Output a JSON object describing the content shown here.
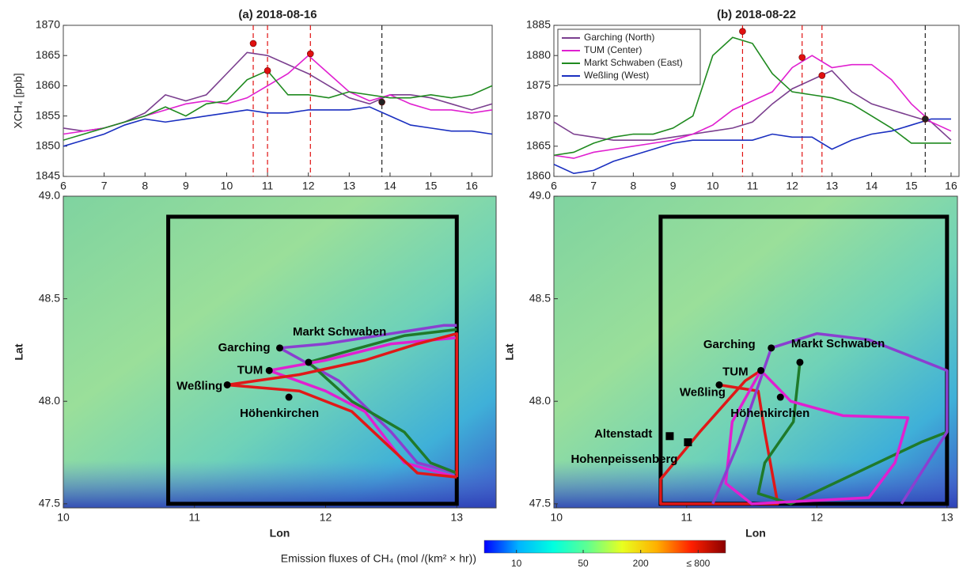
{
  "chart_data": [
    {
      "type": "line",
      "title": "(a) 2018-08-16",
      "y_label": "XCH₄ [ppb]",
      "xlim": [
        6,
        16.5
      ],
      "xticks": [
        6,
        7,
        8,
        9,
        10,
        11,
        12,
        13,
        14,
        15,
        16
      ],
      "ylim": [
        1845,
        1870
      ],
      "yticks": [
        1845,
        1850,
        1855,
        1860,
        1865,
        1870
      ],
      "x": [
        6,
        6.5,
        7,
        7.5,
        8,
        8.5,
        9,
        9.5,
        10,
        10.5,
        11,
        11.5,
        12,
        12.5,
        13,
        13.5,
        14,
        14.5,
        15,
        15.5,
        16,
        16.5
      ],
      "series": [
        {
          "color": "#7b3f8f",
          "values": [
            1853,
            1852.5,
            1853,
            1854,
            1855.5,
            1858.5,
            1857.5,
            1858.5,
            1862,
            1865.5,
            1865,
            1863.5,
            1862,
            1860,
            1858,
            1857,
            1858.5,
            1858.5,
            1858,
            1857,
            1856,
            1857
          ]
        },
        {
          "color": "#e020d0",
          "values": [
            1852,
            1852.5,
            1853,
            1854,
            1855,
            1856,
            1857,
            1857.5,
            1857,
            1858,
            1860,
            1862,
            1865,
            1862,
            1859,
            1857.5,
            1858.5,
            1857,
            1856,
            1856,
            1855.5,
            1856
          ]
        },
        {
          "color": "#1f8a1f",
          "values": [
            1851,
            1852,
            1853,
            1854,
            1855,
            1856.5,
            1855,
            1857,
            1857.5,
            1861,
            1862.5,
            1858.5,
            1858.5,
            1858,
            1859,
            1858.5,
            1858,
            1858,
            1858.5,
            1858,
            1858.5,
            1860
          ]
        },
        {
          "color": "#1a2fc0",
          "values": [
            1850,
            1851,
            1852,
            1853.5,
            1854.5,
            1854,
            1854.5,
            1855,
            1855.5,
            1856,
            1855.5,
            1855.5,
            1856,
            1856,
            1856,
            1856.5,
            1855,
            1853.5,
            1853,
            1852.5,
            1852.5,
            1852
          ]
        }
      ],
      "peaks": {
        "x": [
          10.65,
          11.0,
          12.05,
          13.8
        ],
        "y": [
          1867,
          1862.5,
          1865.3,
          1857.3
        ],
        "colors": [
          "#e01010",
          "#e01010",
          "#e01010",
          "#222222"
        ]
      }
    },
    {
      "type": "line",
      "title": "(b) 2018-08-22",
      "legend": "upper left",
      "xlim": [
        6,
        16.2
      ],
      "xticks": [
        6,
        7,
        8,
        9,
        10,
        11,
        12,
        13,
        14,
        15,
        16
      ],
      "ylim": [
        1860,
        1885
      ],
      "yticks": [
        1860,
        1865,
        1870,
        1875,
        1880,
        1885
      ],
      "x": [
        6,
        6.5,
        7,
        7.5,
        8,
        8.5,
        9,
        9.5,
        10,
        10.5,
        11,
        11.5,
        12,
        12.5,
        13,
        13.5,
        14,
        14.5,
        15,
        15.5,
        16
      ],
      "series": [
        {
          "name": "Garching (North)",
          "color": "#7b3f8f",
          "values": [
            1869,
            1867,
            1866.5,
            1866,
            1866,
            1866,
            1866.5,
            1867,
            1867.5,
            1868,
            1869,
            1872,
            1874.5,
            1876,
            1877.5,
            1874,
            1872,
            1871,
            1870,
            1869,
            1866
          ]
        },
        {
          "name": "TUM (Center)",
          "color": "#e020d0",
          "values": [
            1863.5,
            1863,
            1864,
            1864.5,
            1865,
            1865.5,
            1866,
            1867,
            1868.5,
            1871,
            1872.5,
            1874,
            1878,
            1880,
            1878,
            1878.5,
            1878.5,
            1876,
            1872,
            1869,
            1867.5
          ]
        },
        {
          "name": "Markt Schwaben (East)",
          "color": "#1f8a1f",
          "values": [
            1863.5,
            1864,
            1865.5,
            1866.5,
            1867,
            1867,
            1868,
            1870,
            1880,
            1883,
            1882,
            1877,
            1874,
            1873.5,
            1873,
            1872,
            1870,
            1868,
            1865.5,
            1865.5,
            1865.5
          ]
        },
        {
          "name": "Weßling (West)",
          "color": "#1a2fc0",
          "values": [
            1862,
            1860.5,
            1861,
            1862.5,
            1863.5,
            1864.5,
            1865.5,
            1866,
            1866,
            1866,
            1866,
            1867,
            1866.5,
            1866.5,
            1864.5,
            1866,
            1867,
            1867.5,
            1868.5,
            1869.5,
            1869.5
          ]
        }
      ],
      "peaks": {
        "x": [
          10.75,
          12.25,
          12.75,
          15.35
        ],
        "y": [
          1884,
          1879.7,
          1876.7,
          1869.5
        ],
        "colors": [
          "#e01010",
          "#e01010",
          "#e01010",
          "#222222"
        ]
      }
    },
    {
      "type": "map",
      "x_label": "Lon",
      "y_label": "Lat",
      "xlim": [
        10,
        13.3
      ],
      "xticks": [
        10,
        11,
        12,
        13
      ],
      "ylim": [
        47.48,
        49
      ],
      "yticks": [
        {
          "value": 47.5,
          "label": "47.5"
        },
        {
          "value": 48,
          "label": "48.0"
        },
        {
          "value": 48.5,
          "label": "48.5"
        },
        {
          "value": 49,
          "label": "49.0"
        }
      ],
      "box": {
        "lon": [
          10.8,
          13
        ],
        "lat": [
          47.5,
          48.9
        ]
      },
      "tracks": [
        {
          "color": "#8a3fd0",
          "lon": [
            11.65,
            12.0,
            12.5,
            12.9,
            13
          ],
          "lat": [
            48.26,
            48.28,
            48.33,
            48.37,
            48.37
          ]
        },
        {
          "color": "#8a3fd0",
          "lon": [
            11.65,
            12.1,
            12.5,
            12.7,
            13
          ],
          "lat": [
            48.26,
            48.1,
            47.85,
            47.7,
            47.65
          ]
        },
        {
          "color": "#1f7a2a",
          "lon": [
            11.87,
            12.2,
            12.6,
            13
          ],
          "lat": [
            48.19,
            48.25,
            48.32,
            48.35
          ]
        },
        {
          "color": "#1f7a2a",
          "lon": [
            11.87,
            12.2,
            12.6,
            12.8,
            13
          ],
          "lat": [
            48.19,
            48.0,
            47.85,
            47.7,
            47.65
          ]
        },
        {
          "color": "#e020d0",
          "lon": [
            11.57,
            12.0,
            12.5,
            13
          ],
          "lat": [
            48.15,
            48.2,
            48.28,
            48.31
          ]
        },
        {
          "color": "#e020d0",
          "lon": [
            11.57,
            12.0,
            12.3,
            12.6,
            13
          ],
          "lat": [
            48.15,
            48.05,
            47.95,
            47.7,
            47.63
          ]
        },
        {
          "color": "#e01818",
          "lon": [
            11.25,
            11.8,
            12.3,
            12.7,
            13,
            13
          ],
          "lat": [
            48.08,
            48.13,
            48.2,
            48.28,
            48.33,
            47.63
          ]
        },
        {
          "color": "#e01818",
          "lon": [
            11.25,
            11.8,
            12.2,
            12.45,
            12.7,
            13
          ],
          "lat": [
            48.08,
            48.05,
            47.95,
            47.8,
            47.65,
            47.63
          ]
        }
      ],
      "stations": [
        {
          "name": "Garching",
          "marker": "circle",
          "lon": 11.65,
          "lat": 48.26
        },
        {
          "name": "Markt Schwaben",
          "marker": "circle",
          "lon": 11.87,
          "lat": 48.19
        },
        {
          "name": "TUM",
          "marker": "circle",
          "lon": 11.57,
          "lat": 48.15
        },
        {
          "name": "Weßling",
          "marker": "circle",
          "lon": 11.25,
          "lat": 48.08
        },
        {
          "name": "Höhenkirchen",
          "marker": "circle",
          "lon": 11.72,
          "lat": 48.02
        }
      ]
    },
    {
      "type": "map",
      "x_label": "Lon",
      "y_label": "Lat",
      "xlim": [
        9.98,
        13.08
      ],
      "xticks": [
        10,
        11,
        12,
        13
      ],
      "ylim": [
        47.48,
        49
      ],
      "yticks": [
        {
          "value": 47.5,
          "label": "47.5"
        },
        {
          "value": 48,
          "label": "48.0"
        },
        {
          "value": 48.5,
          "label": "48.5"
        },
        {
          "value": 49,
          "label": "49.0"
        }
      ],
      "box": {
        "lon": [
          10.8,
          13
        ],
        "lat": [
          47.5,
          48.9
        ]
      },
      "tracks": [
        {
          "color": "#e01818",
          "lon": [
            11.25,
            11.55,
            11.6,
            11.7,
            10.8,
            10.8,
            11.1,
            11.45,
            11.57
          ],
          "lat": [
            48.08,
            48.05,
            47.85,
            47.5,
            47.5,
            47.62,
            47.85,
            48.1,
            48.15
          ]
        },
        {
          "color": "#1f7a2a",
          "lon": [
            11.87,
            11.82,
            11.6,
            11.55,
            11.8,
            12.3,
            12.8,
            13
          ],
          "lat": [
            48.19,
            47.9,
            47.7,
            47.55,
            47.5,
            47.65,
            47.8,
            47.85
          ]
        },
        {
          "color": "#e020d0",
          "lon": [
            11.57,
            11.8,
            12.2,
            12.7,
            12.6,
            12.4,
            11.5,
            11.3,
            11.35,
            11.57
          ],
          "lat": [
            48.15,
            48.0,
            47.93,
            47.92,
            47.7,
            47.53,
            47.5,
            47.6,
            47.9,
            48.15
          ]
        },
        {
          "color": "#8a3fd0",
          "lon": [
            11.65,
            12.0,
            12.4,
            12.8,
            13,
            13,
            12.65
          ],
          "lat": [
            48.26,
            48.33,
            48.3,
            48.2,
            48.15,
            47.85,
            47.5
          ]
        },
        {
          "color": "#8a3fd0",
          "lon": [
            11.65,
            11.4,
            11.2
          ],
          "lat": [
            48.26,
            47.8,
            47.5
          ]
        }
      ],
      "stations": [
        {
          "name": "Garching",
          "marker": "circle",
          "lon": 11.65,
          "lat": 48.26
        },
        {
          "name": "Markt Schwaben",
          "marker": "circle",
          "lon": 11.87,
          "lat": 48.19
        },
        {
          "name": "TUM",
          "marker": "circle",
          "lon": 11.57,
          "lat": 48.15
        },
        {
          "name": "Weßling",
          "marker": "circle",
          "lon": 11.25,
          "lat": 48.08
        },
        {
          "name": "Höhenkirchen",
          "marker": "circle",
          "lon": 11.72,
          "lat": 48.02
        },
        {
          "name": "Altenstadt",
          "marker": "square",
          "lon": 10.87,
          "lat": 47.83
        },
        {
          "name": "Hohenpeissenberg",
          "marker": "square",
          "lon": 11.01,
          "lat": 47.8
        }
      ]
    },
    {
      "type": "colorbar",
      "label": "Emission fluxes of CH₄ (mol /(km² × hr))",
      "log_scale": true,
      "clim": [
        4.6,
        1550
      ],
      "ticks": [
        10,
        50,
        200,
        {
          "value": 800,
          "label": "≤ 800"
        }
      ],
      "colors": [
        "#0000ff",
        "#00b4ff",
        "#00ffe0",
        "#60ff90",
        "#e8ff20",
        "#ffb000",
        "#ff2000",
        "#8a0000"
      ]
    }
  ]
}
